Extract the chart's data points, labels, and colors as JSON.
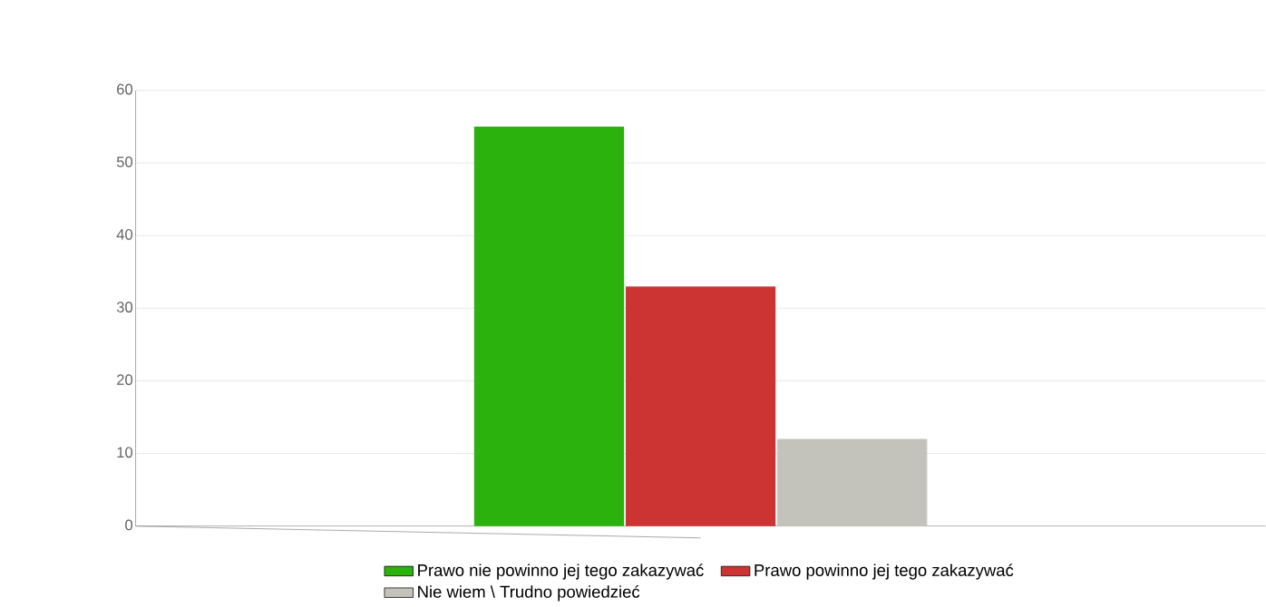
{
  "chart_data": {
    "type": "bar",
    "categories": [
      null
    ],
    "series": [
      {
        "name": "Prawo nie powinno jej tego zakazywać",
        "color": "#2cb20c",
        "values": [
          55
        ]
      },
      {
        "name": "Prawo powinno jej tego zakazywać",
        "color": "#cc3333",
        "values": [
          33
        ]
      },
      {
        "name": "Nie wiem \\ Trudno powiedzieć",
        "color": "#c4c3bb",
        "values": [
          12
        ]
      }
    ],
    "ylim": [
      0,
      60
    ],
    "yticks": [
      0,
      10,
      20,
      30,
      40,
      50,
      60
    ],
    "grid": "y",
    "legend": "bottom"
  }
}
